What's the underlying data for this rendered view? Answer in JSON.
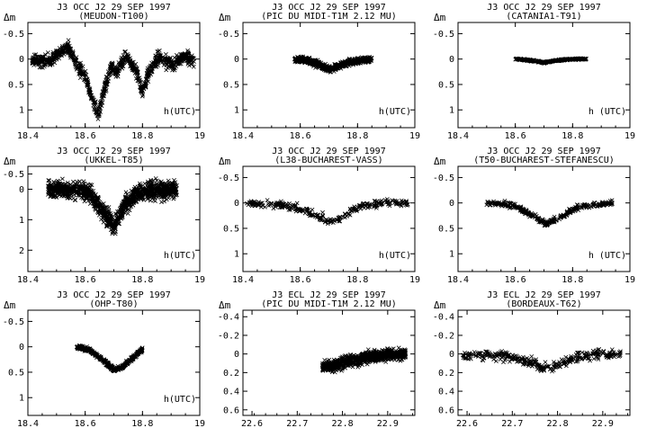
{
  "figure": {
    "rows": 3,
    "cols": 3
  },
  "chart_data": [
    {
      "type": "scatter",
      "marker": "x",
      "color": "#000000",
      "title": "J3 OCC J2 29 SEP 1997",
      "subtitle": "(MEUDON-T100)",
      "ylabel": "Δm",
      "annotation": "h(UTC)",
      "xlim": [
        18.4,
        19.0
      ],
      "ylim": [
        1.35,
        -0.72
      ],
      "y_inverted": true,
      "xticks": [
        18.4,
        18.6,
        18.8,
        19
      ],
      "xtick_labels": [
        "18.4",
        "18.6",
        "18.8",
        "19"
      ],
      "yticks": [
        -0.5,
        0,
        0.5,
        1
      ],
      "ytick_labels": [
        "-0.5",
        "0",
        "0.5",
        "1"
      ],
      "profile": [
        [
          18.415,
          0.05
        ],
        [
          18.48,
          0.02
        ],
        [
          18.54,
          -0.25
        ],
        [
          18.57,
          0.1
        ],
        [
          18.6,
          0.35
        ],
        [
          18.625,
          0.8
        ],
        [
          18.645,
          1.1
        ],
        [
          18.66,
          0.75
        ],
        [
          18.69,
          0.15
        ],
        [
          18.71,
          0.25
        ],
        [
          18.74,
          -0.05
        ],
        [
          18.78,
          0.25
        ],
        [
          18.8,
          0.65
        ],
        [
          18.82,
          0.3
        ],
        [
          18.86,
          -0.05
        ],
        [
          18.9,
          0.1
        ],
        [
          18.95,
          -0.05
        ],
        [
          18.98,
          0.05
        ]
      ],
      "scatter_spread": 0.12,
      "points": 900
    },
    {
      "type": "scatter",
      "marker": "x",
      "color": "#000000",
      "title": "J3 OCC J2 29 SEP 1997",
      "subtitle": "(PIC DU MIDI-T1M 2.12 MU)",
      "ylabel": "Δm",
      "annotation": "h(UTC)",
      "xlim": [
        18.4,
        19.0
      ],
      "ylim": [
        1.35,
        -0.72
      ],
      "y_inverted": true,
      "xticks": [
        18.4,
        18.6,
        18.8,
        19
      ],
      "xtick_labels": [
        "18.4",
        "18.6",
        "18.8",
        "19"
      ],
      "yticks": [
        -0.5,
        0,
        0.5,
        1
      ],
      "ytick_labels": [
        "-0.5",
        "0",
        "0.5",
        "1"
      ],
      "profile": [
        [
          18.58,
          0.0
        ],
        [
          18.62,
          0.02
        ],
        [
          18.66,
          0.1
        ],
        [
          18.7,
          0.2
        ],
        [
          18.74,
          0.12
        ],
        [
          18.78,
          0.05
        ],
        [
          18.82,
          0.02
        ],
        [
          18.85,
          0.0
        ]
      ],
      "scatter_spread": 0.06,
      "points": 600
    },
    {
      "type": "scatter",
      "marker": "x",
      "color": "#000000",
      "title": "J3 OCC J2 29 SEP 1997",
      "subtitle": "(CATANIA1-T91)",
      "ylabel": "Δm",
      "annotation": "h (UTC)",
      "xlim": [
        18.4,
        19.0
      ],
      "ylim": [
        1.35,
        -0.72
      ],
      "y_inverted": true,
      "xticks": [
        18.4,
        18.6,
        18.8,
        19
      ],
      "xtick_labels": [
        "18.4",
        "18.6",
        "18.8",
        "19"
      ],
      "yticks": [
        -0.5,
        0,
        0.5,
        1
      ],
      "ytick_labels": [
        "-0.5",
        "0",
        "0.5",
        "1"
      ],
      "profile": [
        [
          18.6,
          0.0
        ],
        [
          18.66,
          0.03
        ],
        [
          18.7,
          0.07
        ],
        [
          18.74,
          0.03
        ],
        [
          18.8,
          0.0
        ],
        [
          18.85,
          0.0
        ]
      ],
      "scatter_spread": 0.015,
      "points": 350
    },
    {
      "type": "scatter",
      "marker": "x",
      "color": "#000000",
      "title": "J3 OCC J2 29 SEP 1997",
      "subtitle": "(UKKEL-T85)",
      "ylabel": "Δm",
      "annotation": "h(UTC)",
      "xlim": [
        18.4,
        19.0
      ],
      "ylim": [
        2.7,
        -0.75
      ],
      "y_inverted": true,
      "xticks": [
        18.4,
        18.6,
        18.8,
        19
      ],
      "xtick_labels": [
        "18.4",
        "18.6",
        "18.8",
        "19"
      ],
      "yticks": [
        -0.5,
        0,
        1,
        2
      ],
      "ytick_labels": [
        "-0.5",
        "0",
        "1",
        "2"
      ],
      "profile": [
        [
          18.47,
          0.0
        ],
        [
          18.58,
          0.02
        ],
        [
          18.62,
          0.2
        ],
        [
          18.66,
          0.7
        ],
        [
          18.7,
          1.2
        ],
        [
          18.74,
          0.5
        ],
        [
          18.78,
          0.15
        ],
        [
          18.82,
          0.05
        ],
        [
          18.92,
          0.0
        ]
      ],
      "scatter_spread": 0.28,
      "points": 1100
    },
    {
      "type": "scatter",
      "marker": "x",
      "color": "#000000",
      "title": "J3 OCC J2 29 SEP 1997",
      "subtitle": "(L38-BUCHAREST-VASS)",
      "ylabel": "Δm",
      "annotation": "h(UTC)",
      "xlim": [
        18.4,
        19.0
      ],
      "ylim": [
        1.35,
        -0.72
      ],
      "y_inverted": true,
      "xticks": [
        18.4,
        18.6,
        18.8,
        19
      ],
      "xtick_labels": [
        "18.4",
        "18.6",
        "18.8",
        "19"
      ],
      "yticks": [
        -0.5,
        0,
        0.5,
        1
      ],
      "ytick_labels": [
        "-0.5",
        "0",
        "0.5",
        "1"
      ],
      "profile": [
        [
          18.41,
          0.0
        ],
        [
          18.55,
          0.05
        ],
        [
          18.62,
          0.15
        ],
        [
          18.68,
          0.3
        ],
        [
          18.71,
          0.38
        ],
        [
          18.75,
          0.25
        ],
        [
          18.8,
          0.1
        ],
        [
          18.86,
          0.02
        ],
        [
          18.98,
          0.0
        ]
      ],
      "scatter_spread": 0.07,
      "points": 280
    },
    {
      "type": "scatter",
      "marker": "x",
      "color": "#000000",
      "title": "J3 OCC J2 29 SEP 1997",
      "subtitle": "(T50-BUCHAREST-STEFANESCU)",
      "ylabel": "Δm",
      "annotation": "h (UTC)",
      "xlim": [
        18.4,
        19.0
      ],
      "ylim": [
        1.35,
        -0.72
      ],
      "y_inverted": true,
      "xticks": [
        18.4,
        18.6,
        18.8,
        19
      ],
      "xtick_labels": [
        "18.4",
        "18.6",
        "18.8",
        "19"
      ],
      "yticks": [
        -0.5,
        0,
        0.5,
        1
      ],
      "ytick_labels": [
        "-0.5",
        "0",
        "0.5",
        "1"
      ],
      "profile": [
        [
          18.5,
          0.0
        ],
        [
          18.6,
          0.05
        ],
        [
          18.66,
          0.25
        ],
        [
          18.71,
          0.42
        ],
        [
          18.76,
          0.28
        ],
        [
          18.82,
          0.08
        ],
        [
          18.94,
          0.0
        ]
      ],
      "scatter_spread": 0.05,
      "points": 320
    },
    {
      "type": "scatter",
      "marker": "x",
      "color": "#000000",
      "title": "J3 OCC J2 29 SEP 1997",
      "subtitle": "(OHP-T80)",
      "ylabel": "Δm",
      "annotation": "h(UTC)",
      "xlim": [
        18.4,
        19.0
      ],
      "ylim": [
        1.35,
        -0.72
      ],
      "y_inverted": true,
      "xticks": [
        18.4,
        18.6,
        18.8,
        19
      ],
      "xtick_labels": [
        "18.4",
        "18.6",
        "18.8",
        "19"
      ],
      "yticks": [
        -0.5,
        0,
        0.5,
        1
      ],
      "ytick_labels": [
        "-0.5",
        "0",
        "0.5",
        "1"
      ],
      "profile": [
        [
          18.57,
          0.0
        ],
        [
          18.61,
          0.05
        ],
        [
          18.66,
          0.25
        ],
        [
          18.7,
          0.45
        ],
        [
          18.73,
          0.4
        ],
        [
          18.77,
          0.2
        ],
        [
          18.8,
          0.05
        ]
      ],
      "scatter_spread": 0.04,
      "points": 400
    },
    {
      "type": "scatter",
      "marker": "x",
      "color": "#000000",
      "title": "J3 ECL J2 29 SEP 1997",
      "subtitle": "(PIC DU MIDI-T1M 2.12 MU)",
      "ylabel": "Δm",
      "annotation": "",
      "xlim": [
        22.58,
        22.96
      ],
      "ylim": [
        0.66,
        -0.47
      ],
      "y_inverted": true,
      "xticks": [
        22.6,
        22.7,
        22.8,
        22.9
      ],
      "xtick_labels": [
        "22.6",
        "22.7",
        "22.8",
        "22.9"
      ],
      "yticks": [
        -0.4,
        -0.2,
        0,
        0.2,
        0.4,
        0.6
      ],
      "ytick_labels": [
        "-0.4",
        "-0.2",
        "0",
        "0.2",
        "0.4",
        "0.6"
      ],
      "profile": [
        [
          22.755,
          0.15
        ],
        [
          22.78,
          0.12
        ],
        [
          22.82,
          0.07
        ],
        [
          22.86,
          0.03
        ],
        [
          22.9,
          0.01
        ],
        [
          22.94,
          0.0
        ]
      ],
      "scatter_spread": 0.06,
      "points": 800
    },
    {
      "type": "scatter",
      "marker": "x",
      "color": "#000000",
      "title": "J3 ECL J2 29 SEP 1997",
      "subtitle": "(BORDEAUX-T62)",
      "ylabel": "Δm",
      "annotation": "",
      "xlim": [
        22.58,
        22.96
      ],
      "ylim": [
        0.66,
        -0.47
      ],
      "y_inverted": true,
      "xticks": [
        22.6,
        22.7,
        22.8,
        22.9
      ],
      "xtick_labels": [
        "22.6",
        "22.7",
        "22.8",
        "22.9"
      ],
      "yticks": [
        -0.4,
        -0.2,
        0,
        0.2,
        0.4,
        0.6
      ],
      "ytick_labels": [
        "-0.4",
        "-0.2",
        "0",
        "0.2",
        "0.4",
        "0.6"
      ],
      "profile": [
        [
          22.59,
          0.0
        ],
        [
          22.68,
          0.02
        ],
        [
          22.73,
          0.08
        ],
        [
          22.77,
          0.15
        ],
        [
          22.8,
          0.12
        ],
        [
          22.84,
          0.05
        ],
        [
          22.88,
          0.0
        ],
        [
          22.94,
          0.0
        ]
      ],
      "scatter_spread": 0.05,
      "points": 330
    }
  ]
}
